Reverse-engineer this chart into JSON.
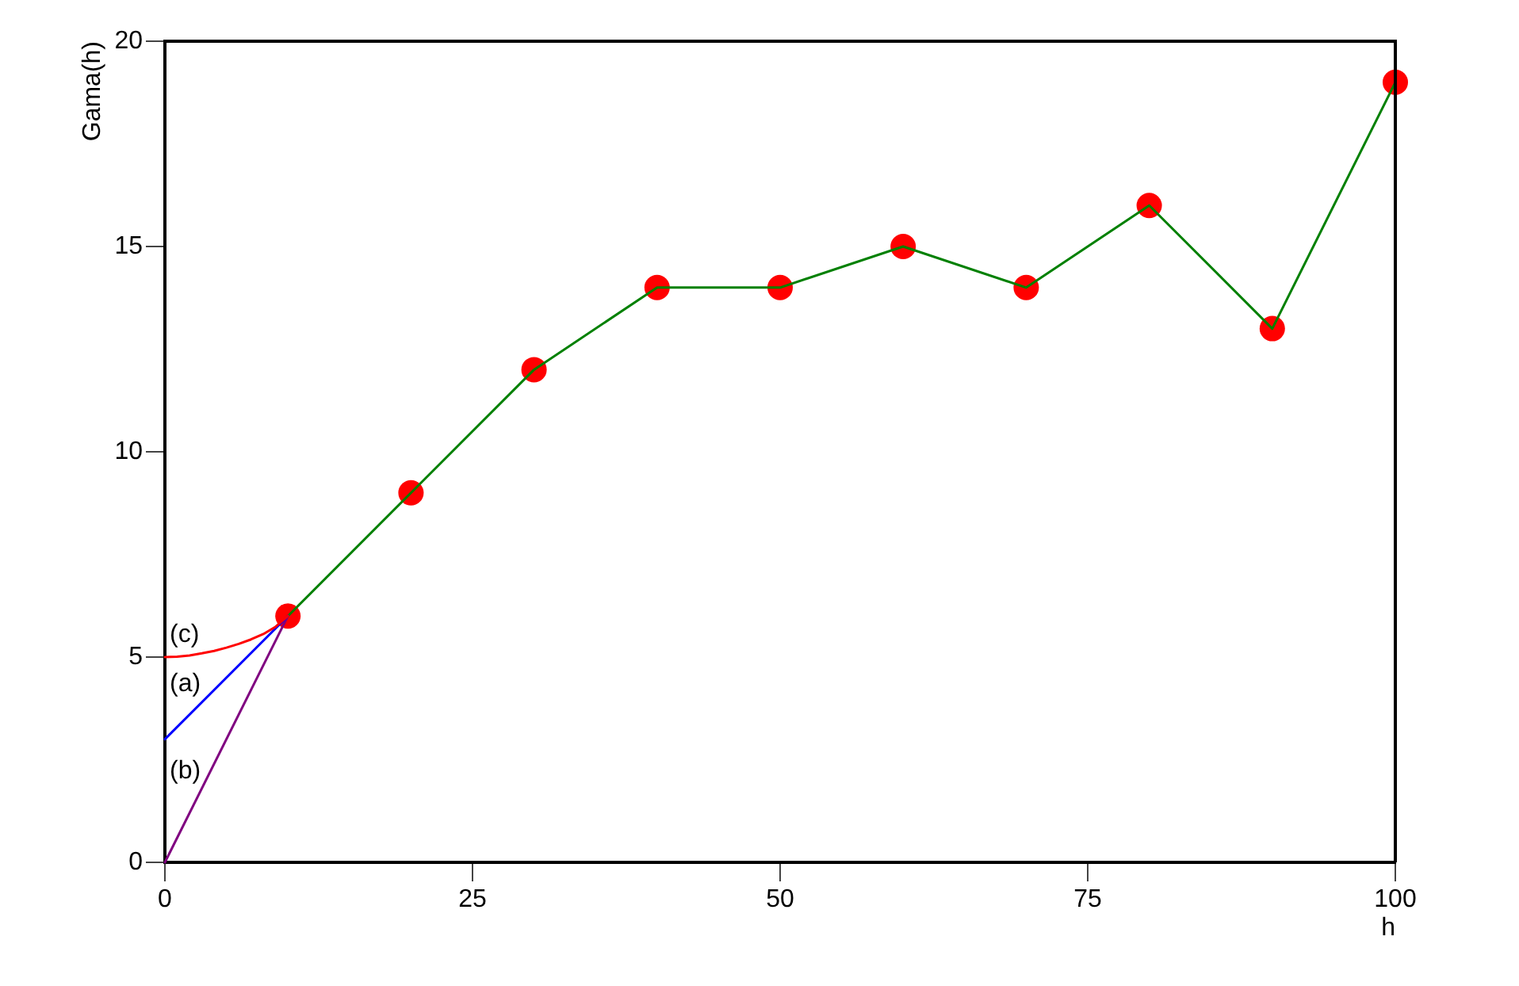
{
  "chart_data": {
    "type": "line",
    "xlabel": "h",
    "ylabel": "Gama(h)",
    "xlim": [
      0,
      100
    ],
    "xticks": [
      0,
      25,
      50,
      75,
      100
    ],
    "ylim": [
      0,
      20
    ],
    "yticks": [
      0,
      5,
      10,
      15,
      20
    ],
    "grid": false,
    "legend": false,
    "marker": "none",
    "series": [
      {
        "name": "(c)",
        "color": "#ff0000",
        "x": [
          0,
          1,
          2,
          3,
          4,
          5,
          6,
          7,
          8,
          9,
          10
        ],
        "values": [
          5,
          5.01,
          5.04,
          5.09,
          5.15,
          5.23,
          5.32,
          5.43,
          5.56,
          5.74,
          6
        ]
      },
      {
        "name": "(a)",
        "color": "#0000ff",
        "x": [
          0,
          10
        ],
        "values": [
          3,
          6
        ]
      },
      {
        "name": "(b)",
        "color": "#800080",
        "x": [
          0,
          10
        ],
        "values": [
          0,
          6
        ]
      },
      {
        "color": "#008000",
        "x": [
          10,
          20,
          30,
          40,
          50,
          60,
          70,
          80,
          90,
          100
        ],
        "values": [
          6,
          9,
          12,
          14,
          14,
          15,
          14,
          16,
          13,
          19
        ]
      },
      {
        "type": "scatter",
        "color": "#ff0000",
        "marker": "circle",
        "x": [
          10,
          20,
          30,
          40,
          50,
          60,
          70,
          80,
          90,
          100
        ],
        "values": [
          6,
          9,
          12,
          14,
          14,
          15,
          14,
          16,
          13,
          19
        ]
      }
    ]
  }
}
